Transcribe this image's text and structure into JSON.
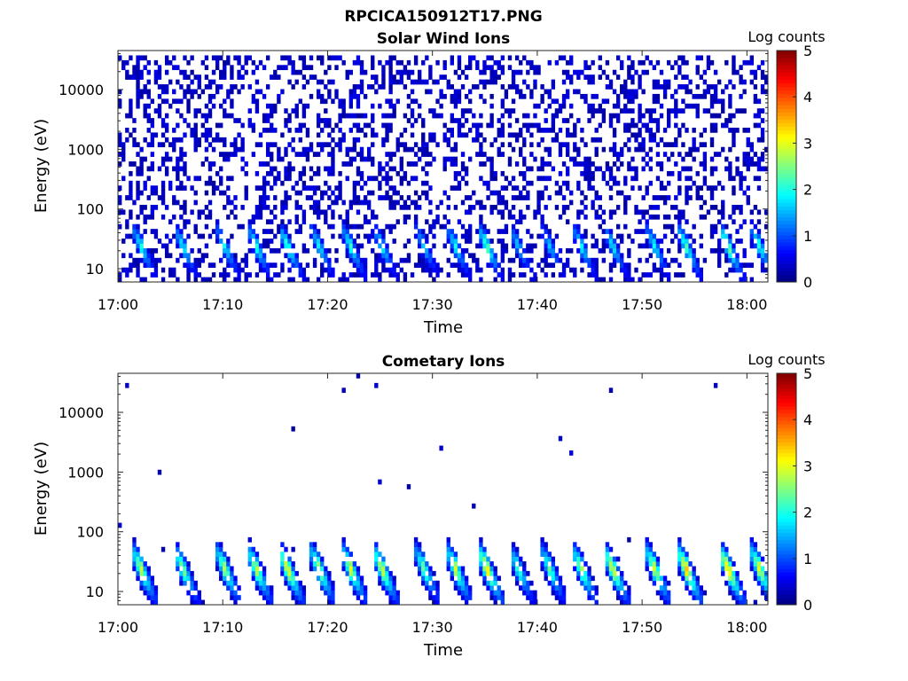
{
  "figure_title": "RPCICA150912T17.PNG",
  "chart_data": [
    {
      "type": "heatmap",
      "title": "Solar Wind Ions",
      "xlabel": "Time",
      "ylabel": "Energy (eV)",
      "x_ticks": [
        "17:00",
        "17:10",
        "17:20",
        "17:30",
        "17:40",
        "17:50",
        "18:00"
      ],
      "x_range": [
        "17:00",
        "18:02"
      ],
      "y_scale": "log",
      "y_ticks": [
        10,
        100,
        1000,
        10000
      ],
      "y_range": [
        6,
        45000
      ],
      "colorbar": {
        "label": "Log counts",
        "range": [
          0,
          5
        ],
        "ticks": [
          0,
          1,
          2,
          3,
          4,
          5
        ],
        "colormap": "jet"
      },
      "grid": false,
      "bursts": [
        {
          "time": "17:02",
          "peak": 2.1
        },
        {
          "time": "17:06",
          "peak": 2.0
        },
        {
          "time": "17:10",
          "peak": 2.0
        },
        {
          "time": "17:13",
          "peak": 2.2
        },
        {
          "time": "17:16",
          "peak": 2.4
        },
        {
          "time": "17:19",
          "peak": 2.0
        },
        {
          "time": "17:22",
          "peak": 2.2
        },
        {
          "time": "17:25",
          "peak": 2.0
        },
        {
          "time": "17:29",
          "peak": 1.8
        },
        {
          "time": "17:32",
          "peak": 2.0
        },
        {
          "time": "17:35",
          "peak": 2.5
        },
        {
          "time": "17:38",
          "peak": 1.8
        },
        {
          "time": "17:41",
          "peak": 1.7
        },
        {
          "time": "17:44",
          "peak": 2.0
        },
        {
          "time": "17:47",
          "peak": 2.0
        },
        {
          "time": "17:51",
          "peak": 2.0
        },
        {
          "time": "17:54",
          "peak": 2.4
        },
        {
          "time": "17:58",
          "peak": 2.8
        },
        {
          "time": "18:01",
          "peak": 2.2
        }
      ]
    },
    {
      "type": "heatmap",
      "title": "Cometary Ions",
      "xlabel": "Time",
      "ylabel": "Energy (eV)",
      "x_ticks": [
        "17:00",
        "17:10",
        "17:20",
        "17:30",
        "17:40",
        "17:50",
        "18:00"
      ],
      "x_range": [
        "17:00",
        "18:02"
      ],
      "y_scale": "log",
      "y_ticks": [
        10,
        100,
        1000,
        10000
      ],
      "y_range": [
        6,
        45000
      ],
      "colorbar": {
        "label": "Log counts",
        "range": [
          0,
          5
        ],
        "ticks": [
          0,
          1,
          2,
          3,
          4,
          5
        ],
        "colormap": "jet"
      },
      "grid": false,
      "bursts": [
        {
          "time": "17:02",
          "peak": 3.0
        },
        {
          "time": "17:06",
          "peak": 2.8
        },
        {
          "time": "17:10",
          "peak": 2.9
        },
        {
          "time": "17:13",
          "peak": 3.0
        },
        {
          "time": "17:16",
          "peak": 3.4
        },
        {
          "time": "17:19",
          "peak": 3.0
        },
        {
          "time": "17:22",
          "peak": 3.1
        },
        {
          "time": "17:25",
          "peak": 3.2
        },
        {
          "time": "17:29",
          "peak": 2.6
        },
        {
          "time": "17:32",
          "peak": 3.0
        },
        {
          "time": "17:35",
          "peak": 3.6
        },
        {
          "time": "17:38",
          "peak": 2.4
        },
        {
          "time": "17:41",
          "peak": 2.5
        },
        {
          "time": "17:44",
          "peak": 2.9
        },
        {
          "time": "17:47",
          "peak": 3.3
        },
        {
          "time": "17:51",
          "peak": 3.1
        },
        {
          "time": "17:54",
          "peak": 3.6
        },
        {
          "time": "17:58",
          "peak": 3.7
        },
        {
          "time": "18:01",
          "peak": 3.2
        }
      ]
    }
  ]
}
